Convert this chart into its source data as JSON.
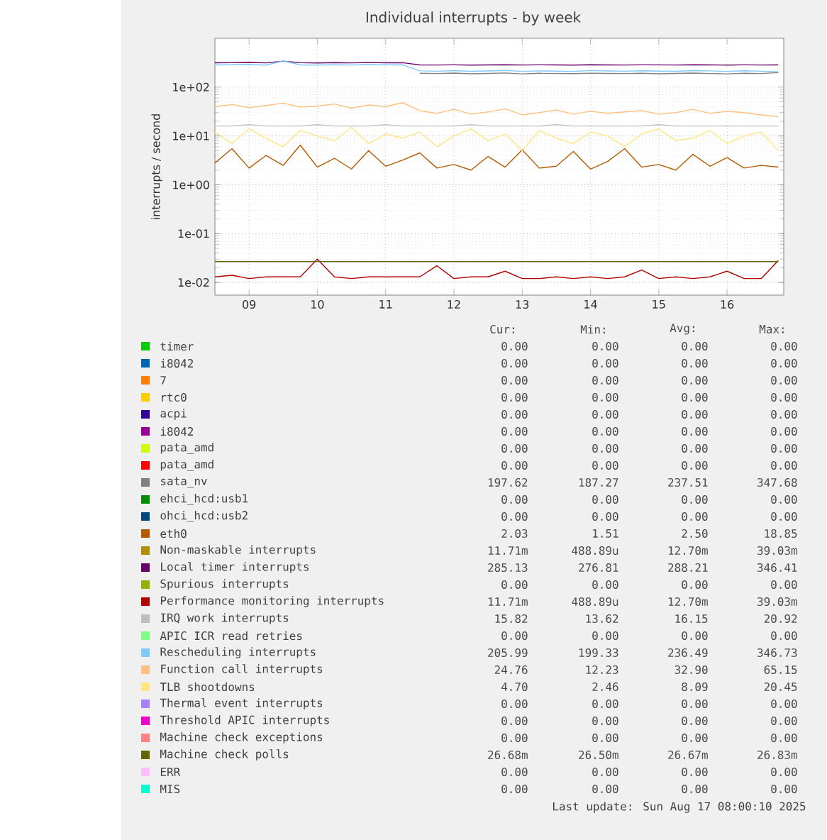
{
  "chart_data": {
    "type": "line",
    "title": "Individual interrupts - by week",
    "ylabel": "interrupts / second",
    "log": true,
    "grid": true,
    "legend": "bottom",
    "xlim": [
      9.0,
      17.33
    ],
    "ylim": [
      0.0055,
      1000
    ],
    "xticks": [
      {
        "value": 9.5,
        "label": "09"
      },
      {
        "value": 10.5,
        "label": "10"
      },
      {
        "value": 11.5,
        "label": "11"
      },
      {
        "value": 12.5,
        "label": "12"
      },
      {
        "value": 13.5,
        "label": "13"
      },
      {
        "value": 14.5,
        "label": "14"
      },
      {
        "value": 15.5,
        "label": "15"
      },
      {
        "value": 16.5,
        "label": "16"
      }
    ],
    "yticks": [
      {
        "value": 0.01,
        "label": "1e-02"
      },
      {
        "value": 0.1,
        "label": "1e-01"
      },
      {
        "value": 1,
        "label": "1e+00"
      },
      {
        "value": 10,
        "label": "1e+01"
      },
      {
        "value": 100,
        "label": "1e+02"
      }
    ],
    "x": [
      9.0,
      9.25,
      9.5,
      9.75,
      10.0,
      10.25,
      10.5,
      10.75,
      11.0,
      11.25,
      11.5,
      11.75,
      12.0,
      12.25,
      12.5,
      12.75,
      13.0,
      13.25,
      13.5,
      13.75,
      14.0,
      14.25,
      14.5,
      14.75,
      15.0,
      15.25,
      15.5,
      15.75,
      16.0,
      16.25,
      16.5,
      16.75,
      17.0,
      17.25
    ],
    "series": [
      {
        "name": "timer",
        "color": "#00cc00",
        "values": [
          null,
          null,
          null,
          null,
          null,
          null,
          null,
          null,
          null,
          null,
          null,
          null,
          null,
          null,
          null,
          null,
          null,
          null,
          null,
          null,
          null,
          null,
          null,
          null,
          null,
          null,
          null,
          null,
          null,
          null,
          null,
          null,
          null,
          null
        ]
      },
      {
        "name": "i8042",
        "color": "#0066b3",
        "values": [
          null,
          null,
          null,
          null,
          null,
          null,
          null,
          null,
          null,
          null,
          null,
          null,
          null,
          null,
          null,
          null,
          null,
          null,
          null,
          null,
          null,
          null,
          null,
          null,
          null,
          null,
          null,
          null,
          null,
          null,
          null,
          null,
          null,
          null
        ]
      },
      {
        "name": "7",
        "color": "#ff8000",
        "values": [
          null,
          null,
          null,
          null,
          null,
          null,
          null,
          null,
          null,
          null,
          null,
          null,
          null,
          null,
          null,
          null,
          null,
          null,
          null,
          null,
          null,
          null,
          null,
          null,
          null,
          null,
          null,
          null,
          null,
          null,
          null,
          null,
          null,
          null
        ]
      },
      {
        "name": "rtc0",
        "color": "#ffcc00",
        "values": [
          null,
          null,
          null,
          null,
          null,
          null,
          null,
          null,
          null,
          null,
          null,
          null,
          null,
          null,
          null,
          null,
          null,
          null,
          null,
          null,
          null,
          null,
          null,
          null,
          null,
          null,
          null,
          null,
          null,
          null,
          null,
          null,
          null,
          null
        ]
      },
      {
        "name": "acpi",
        "color": "#330099",
        "values": [
          null,
          null,
          null,
          null,
          null,
          null,
          null,
          null,
          null,
          null,
          null,
          null,
          null,
          null,
          null,
          null,
          null,
          null,
          null,
          null,
          null,
          null,
          null,
          null,
          null,
          null,
          null,
          null,
          null,
          null,
          null,
          null,
          null,
          null
        ]
      },
      {
        "name": "i8042",
        "color": "#990099",
        "values": [
          null,
          null,
          null,
          null,
          null,
          null,
          null,
          null,
          null,
          null,
          null,
          null,
          null,
          null,
          null,
          null,
          null,
          null,
          null,
          null,
          null,
          null,
          null,
          null,
          null,
          null,
          null,
          null,
          null,
          null,
          null,
          null,
          null,
          null
        ]
      },
      {
        "name": "pata_amd",
        "color": "#ccff00",
        "values": [
          null,
          null,
          null,
          null,
          null,
          null,
          null,
          null,
          null,
          null,
          null,
          null,
          null,
          null,
          null,
          null,
          null,
          null,
          null,
          null,
          null,
          null,
          null,
          null,
          null,
          null,
          null,
          null,
          null,
          null,
          null,
          null,
          null,
          null
        ]
      },
      {
        "name": "pata_amd",
        "color": "#ff0000",
        "values": [
          null,
          null,
          null,
          null,
          null,
          null,
          null,
          null,
          null,
          null,
          null,
          null,
          null,
          null,
          null,
          null,
          null,
          null,
          null,
          null,
          null,
          null,
          null,
          null,
          null,
          null,
          null,
          null,
          null,
          null,
          null,
          null,
          null,
          null
        ]
      },
      {
        "name": "sata_nv",
        "color": "#808080",
        "values": [
          null,
          null,
          null,
          null,
          null,
          null,
          null,
          null,
          null,
          null,
          null,
          null,
          192,
          190,
          194,
          188,
          191,
          195,
          187,
          192,
          190,
          189,
          193,
          191,
          190,
          192,
          188,
          191,
          194,
          190,
          187,
          192,
          190,
          198
        ]
      },
      {
        "name": "ehci_hcd:usb1",
        "color": "#008f00",
        "values": [
          null,
          null,
          null,
          null,
          null,
          null,
          null,
          null,
          null,
          null,
          null,
          null,
          null,
          null,
          null,
          null,
          null,
          null,
          null,
          null,
          null,
          null,
          null,
          null,
          null,
          null,
          null,
          null,
          null,
          null,
          null,
          null,
          null,
          null
        ]
      },
      {
        "name": "ohci_hcd:usb2",
        "color": "#00487d",
        "values": [
          null,
          null,
          null,
          null,
          null,
          null,
          null,
          null,
          null,
          null,
          null,
          null,
          null,
          null,
          null,
          null,
          null,
          null,
          null,
          null,
          null,
          null,
          null,
          null,
          null,
          null,
          null,
          null,
          null,
          null,
          null,
          null,
          null,
          null
        ]
      },
      {
        "name": "eth0",
        "color": "#b35a00",
        "values": [
          2.8,
          5.5,
          2.2,
          4.0,
          2.5,
          6.5,
          2.3,
          3.5,
          2.1,
          5.0,
          2.4,
          3.2,
          4.5,
          2.2,
          2.6,
          2.0,
          3.8,
          2.3,
          5.2,
          2.2,
          2.4,
          4.8,
          2.1,
          3.0,
          5.5,
          2.3,
          2.6,
          2.0,
          4.2,
          2.4,
          3.6,
          2.2,
          2.5,
          2.3
        ]
      },
      {
        "name": "Non-maskable interrupts",
        "color": "#b38f00",
        "values": [
          null,
          null,
          null,
          null,
          null,
          null,
          null,
          null,
          null,
          null,
          null,
          null,
          null,
          null,
          null,
          null,
          null,
          null,
          null,
          null,
          null,
          null,
          null,
          null,
          null,
          null,
          null,
          null,
          null,
          null,
          null,
          null,
          null,
          null
        ]
      },
      {
        "name": "Local timer interrupts",
        "color": "#6b006b",
        "values": [
          315,
          317,
          320,
          314,
          340,
          316,
          313,
          318,
          314,
          319,
          315,
          317,
          285,
          284,
          286,
          283,
          285,
          288,
          284,
          286,
          285,
          283,
          287,
          285,
          284,
          286,
          285,
          284,
          288,
          285,
          283,
          286,
          284,
          285
        ]
      },
      {
        "name": "Spurious interrupts",
        "color": "#8fb300",
        "values": [
          null,
          null,
          null,
          null,
          null,
          null,
          null,
          null,
          null,
          null,
          null,
          null,
          null,
          null,
          null,
          null,
          null,
          null,
          null,
          null,
          null,
          null,
          null,
          null,
          null,
          null,
          null,
          null,
          null,
          null,
          null,
          null,
          null,
          null
        ]
      },
      {
        "name": "Performance monitoring interrupts",
        "color": "#b30000",
        "values": [
          0.013,
          0.014,
          0.012,
          0.013,
          0.013,
          0.013,
          0.03,
          0.013,
          0.012,
          0.013,
          0.013,
          0.013,
          0.013,
          0.022,
          0.012,
          0.013,
          0.013,
          0.017,
          0.012,
          0.012,
          0.013,
          0.012,
          0.013,
          0.012,
          0.013,
          0.018,
          0.012,
          0.013,
          0.012,
          0.013,
          0.017,
          0.012,
          0.012,
          0.028
        ]
      },
      {
        "name": "IRQ work interrupts",
        "color": "#bebebe",
        "values": [
          16,
          16,
          17,
          16,
          16,
          16,
          17,
          16,
          16,
          16,
          17,
          16,
          16,
          16,
          16,
          17,
          16,
          16,
          16,
          16,
          17,
          16,
          16,
          16,
          16,
          16,
          17,
          16,
          16,
          16,
          16,
          16,
          16,
          16
        ]
      },
      {
        "name": "APIC ICR read retries",
        "color": "#80ff80",
        "values": [
          null,
          null,
          null,
          null,
          null,
          null,
          null,
          null,
          null,
          null,
          null,
          null,
          null,
          null,
          null,
          null,
          null,
          null,
          null,
          null,
          null,
          null,
          null,
          null,
          null,
          null,
          null,
          null,
          null,
          null,
          null,
          null,
          null,
          null
        ]
      },
      {
        "name": "Rescheduling interrupts",
        "color": "#80c9ff",
        "values": [
          285,
          287,
          290,
          283,
          346,
          285,
          282,
          288,
          284,
          290,
          285,
          287,
          215,
          212,
          218,
          211,
          214,
          220,
          210,
          215,
          213,
          210,
          219,
          214,
          212,
          216,
          213,
          211,
          218,
          215,
          210,
          216,
          212,
          206
        ]
      },
      {
        "name": "Function call interrupts",
        "color": "#ffc080",
        "values": [
          40,
          44,
          38,
          42,
          47,
          39,
          41,
          45,
          37,
          43,
          40,
          48,
          33,
          29,
          35,
          28,
          31,
          36,
          27,
          30,
          34,
          28,
          32,
          29,
          31,
          33,
          28,
          30,
          35,
          29,
          32,
          30,
          27,
          25
        ]
      },
      {
        "name": "TLB shootdowns",
        "color": "#ffe680",
        "values": [
          12,
          7,
          14,
          9,
          6,
          13,
          10,
          8,
          15,
          7,
          11,
          9,
          12,
          6,
          10,
          14,
          8,
          11,
          5,
          13,
          9,
          7,
          12,
          10,
          6,
          11,
          14,
          8,
          9,
          13,
          7,
          10,
          12,
          5
        ]
      },
      {
        "name": "Thermal event interrupts",
        "color": "#aa80ff",
        "values": [
          null,
          null,
          null,
          null,
          null,
          null,
          null,
          null,
          null,
          null,
          null,
          null,
          null,
          null,
          null,
          null,
          null,
          null,
          null,
          null,
          null,
          null,
          null,
          null,
          null,
          null,
          null,
          null,
          null,
          null,
          null,
          null,
          null,
          null
        ]
      },
      {
        "name": "Threshold APIC interrupts",
        "color": "#ee00cc",
        "values": [
          null,
          null,
          null,
          null,
          null,
          null,
          null,
          null,
          null,
          null,
          null,
          null,
          null,
          null,
          null,
          null,
          null,
          null,
          null,
          null,
          null,
          null,
          null,
          null,
          null,
          null,
          null,
          null,
          null,
          null,
          null,
          null,
          null,
          null
        ]
      },
      {
        "name": "Machine check exceptions",
        "color": "#ff8080",
        "values": [
          null,
          null,
          null,
          null,
          null,
          null,
          null,
          null,
          null,
          null,
          null,
          null,
          null,
          null,
          null,
          null,
          null,
          null,
          null,
          null,
          null,
          null,
          null,
          null,
          null,
          null,
          null,
          null,
          null,
          null,
          null,
          null,
          null,
          null
        ]
      },
      {
        "name": "Machine check polls",
        "color": "#666600",
        "values": [
          0.0267,
          0.0267,
          0.0267,
          0.0267,
          0.0267,
          0.0267,
          0.0267,
          0.0267,
          0.0267,
          0.0267,
          0.0267,
          0.0267,
          0.0267,
          0.0267,
          0.0267,
          0.0267,
          0.0267,
          0.0267,
          0.0267,
          0.0267,
          0.0267,
          0.0267,
          0.0267,
          0.0267,
          0.0267,
          0.0267,
          0.0267,
          0.0267,
          0.0267,
          0.0267,
          0.0267,
          0.0267,
          0.0267,
          0.0267
        ]
      },
      {
        "name": "ERR",
        "color": "#ffbfff",
        "values": [
          null,
          null,
          null,
          null,
          null,
          null,
          null,
          null,
          null,
          null,
          null,
          null,
          null,
          null,
          null,
          null,
          null,
          null,
          null,
          null,
          null,
          null,
          null,
          null,
          null,
          null,
          null,
          null,
          null,
          null,
          null,
          null,
          null,
          null
        ]
      },
      {
        "name": "MIS",
        "color": "#00ffcc",
        "values": [
          null,
          null,
          null,
          null,
          null,
          null,
          null,
          null,
          null,
          null,
          null,
          null,
          null,
          null,
          null,
          null,
          null,
          null,
          null,
          null,
          null,
          null,
          null,
          null,
          null,
          null,
          null,
          null,
          null,
          null,
          null,
          null,
          null,
          null
        ]
      }
    ],
    "annotations": [
      "Cur:",
      "Min:",
      "Avg:",
      "Max:",
      "0.00",
      "0.00",
      "0.00",
      "0.00",
      "0.00",
      "0.00",
      "0.00",
      "0.00",
      "0.00",
      "0.00",
      "0.00",
      "0.00",
      "0.00",
      "0.00",
      "0.00",
      "0.00",
      "0.00",
      "0.00",
      "0.00",
      "0.00",
      "0.00",
      "0.00",
      "0.00",
      "0.00",
      "0.00",
      "0.00",
      "0.00",
      "0.00",
      "0.00",
      "0.00",
      "0.00",
      "0.00",
      "197.62",
      "187.27",
      "237.51",
      "347.68",
      "0.00",
      "0.00",
      "0.00",
      "0.00",
      "0.00",
      "0.00",
      "0.00",
      "0.00",
      "2.03",
      "1.51",
      "2.50",
      "18.85",
      "11.71m",
      "488.89u",
      "12.70m",
      "39.03m",
      "285.13",
      "276.81",
      "288.21",
      "346.41",
      "0.00",
      "0.00",
      "0.00",
      "0.00",
      "11.71m",
      "488.89u",
      "12.70m",
      "39.03m",
      "15.82",
      "13.62",
      "16.15",
      "20.92",
      "0.00",
      "0.00",
      "0.00",
      "0.00",
      "205.99",
      "199.33",
      "236.49",
      "346.73",
      "24.76",
      "12.23",
      "32.90",
      "65.15",
      "4.70",
      "2.46",
      "8.09",
      "20.45",
      "0.00",
      "0.00",
      "0.00",
      "0.00",
      "0.00",
      "0.00",
      "0.00",
      "0.00",
      "0.00",
      "0.00",
      "0.00",
      "0.00",
      "26.68m",
      "26.50m",
      "26.67m",
      "26.83m",
      "0.00",
      "0.00",
      "0.00",
      "0.00",
      "0.00",
      "0.00",
      "0.00",
      "0.00",
      "Last update:  Sun Aug 17 08:00:10 2025"
    ]
  }
}
